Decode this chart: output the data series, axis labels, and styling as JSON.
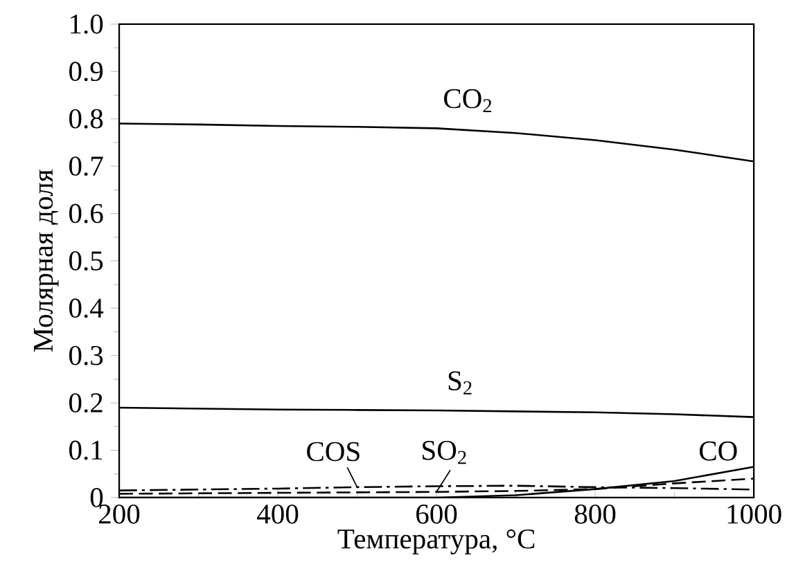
{
  "chart_data": {
    "type": "line",
    "xlabel": "Температура, °C",
    "ylabel": "Молярная доля",
    "xlim": [
      200,
      1000
    ],
    "ylim": [
      0,
      1.0
    ],
    "xticks": [
      200,
      400,
      600,
      800,
      1000
    ],
    "yticks": [
      0,
      0.1,
      0.2,
      0.3,
      0.4,
      0.5,
      0.6,
      0.7,
      0.8,
      0.9,
      {
        "value": 1.0,
        "label": "1.0"
      }
    ],
    "marker": "none",
    "grid": false,
    "legend": false,
    "x": [
      200,
      300,
      400,
      500,
      600,
      700,
      800,
      900,
      1000
    ],
    "series": [
      {
        "name": "CO$_{2}$",
        "color": "#000000",
        "line_style": "solid",
        "values": [
          0.79,
          0.788,
          0.785,
          0.783,
          0.78,
          0.77,
          0.755,
          0.735,
          0.71
        ]
      },
      {
        "name": "S$_{2}$",
        "color": "#000000",
        "line_style": "solid",
        "values": [
          0.19,
          0.188,
          0.186,
          0.185,
          0.184,
          0.182,
          0.18,
          0.176,
          0.17
        ]
      },
      {
        "name": "COS",
        "color": "#000000",
        "line_style": "dashdotted",
        "values": [
          0.015,
          0.017,
          0.019,
          0.022,
          0.024,
          0.025,
          0.022,
          0.02,
          0.017
        ]
      },
      {
        "name": "SO$_{2}$",
        "color": "#000000",
        "line_style": "dashed",
        "values": [
          0.008,
          0.009,
          0.01,
          0.011,
          0.012,
          0.014,
          0.018,
          0.03,
          0.04
        ]
      },
      {
        "name": "CO",
        "color": "#000000",
        "line_style": "solid",
        "values": [
          0,
          0,
          0,
          0,
          0,
          0.005,
          0.018,
          0.035,
          0.065
        ]
      }
    ]
  }
}
